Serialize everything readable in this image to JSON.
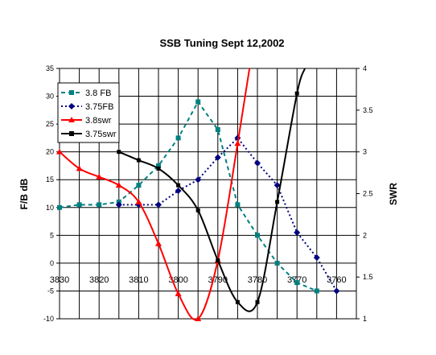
{
  "chart_data": {
    "type": "line",
    "title": "SSB Tuning Sept 12,2002",
    "ylabel": "F/B dB",
    "y2label": "SWR",
    "x_reversed": true,
    "xlim": [
      3830,
      3755
    ],
    "ylim": [
      -10,
      35
    ],
    "y2lim": [
      1,
      4
    ],
    "x_ticks": [
      3830,
      3820,
      3810,
      3800,
      3790,
      3780,
      3770,
      3760
    ],
    "y_ticks": [
      -10,
      -5,
      0,
      5,
      10,
      15,
      20,
      25,
      30,
      35
    ],
    "y2_ticks": [
      1,
      1.5,
      2,
      2.5,
      3,
      3.5,
      4
    ],
    "grid": true,
    "legend_position": "top-left",
    "series": [
      {
        "name": "3.8 FB",
        "axis": "left",
        "color": "#008080",
        "line": "dashed",
        "marker": "square",
        "x": [
          3830,
          3825,
          3820,
          3815,
          3810,
          3805,
          3800,
          3795,
          3790,
          3785,
          3780,
          3775,
          3770,
          3765
        ],
        "y": [
          10,
          10.5,
          10.5,
          11,
          14,
          17.5,
          22.5,
          29,
          24,
          10.5,
          5,
          0,
          -3.5,
          -5
        ]
      },
      {
        "name": "3.75FB",
        "axis": "left",
        "color": "#000080",
        "line": "dotted",
        "marker": "diamond",
        "x": [
          3815,
          3810,
          3805,
          3800,
          3795,
          3790,
          3785,
          3780,
          3775,
          3770,
          3765,
          3760
        ],
        "y": [
          10.5,
          10.5,
          10.5,
          13,
          15,
          19,
          22.5,
          18,
          14,
          5.5,
          1,
          -5
        ]
      },
      {
        "name": "3.8swr",
        "axis": "right",
        "color": "#ff0000",
        "line": "solid",
        "marker": "triangle",
        "x": [
          3830,
          3825,
          3820,
          3815,
          3810,
          3805,
          3800,
          3795,
          3790,
          3785,
          3782
        ],
        "y": [
          3,
          2.8,
          2.7,
          2.6,
          2.4,
          1.9,
          1.3,
          1.0,
          1.7,
          3.1,
          4.0
        ]
      },
      {
        "name": "3.75swr",
        "axis": "right",
        "color": "#000000",
        "line": "solid",
        "marker": "square",
        "x": [
          3815,
          3810,
          3805,
          3800,
          3795,
          3790,
          3785,
          3780,
          3775,
          3770,
          3768
        ],
        "y": [
          3,
          2.9,
          2.8,
          2.6,
          2.3,
          1.7,
          1.2,
          1.2,
          2.4,
          3.7,
          4.0
        ]
      }
    ]
  }
}
